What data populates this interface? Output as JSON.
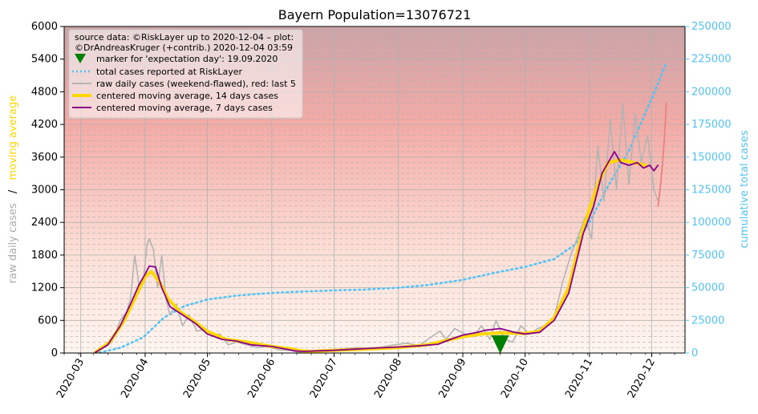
{
  "chart_data": {
    "type": "line",
    "title": "Bayern Population=13076721",
    "ylabel_left_parts": [
      "raw daily cases",
      "/",
      "moving average"
    ],
    "ylabel_right": "cumulative total cases",
    "x_ticks": [
      "2020-03",
      "2020-04",
      "2020-05",
      "2020-06",
      "2020-07",
      "2020-08",
      "2020-09",
      "2020-10",
      "2020-11",
      "2020-12"
    ],
    "x_tick_dates": [
      "2020-03-01",
      "2020-04-01",
      "2020-05-01",
      "2020-06-01",
      "2020-07-01",
      "2020-08-01",
      "2020-09-01",
      "2020-10-01",
      "2020-11-01",
      "2020-12-01"
    ],
    "xlim": [
      "2020-02-22",
      "2020-12-17"
    ],
    "ylim_left": [
      0,
      6000
    ],
    "yticks_left": [
      0,
      600,
      1200,
      1800,
      2400,
      3000,
      3600,
      4200,
      4800,
      5400,
      6000
    ],
    "ylim_right": [
      0,
      250000
    ],
    "yticks_right": [
      0,
      25000,
      50000,
      75000,
      100000,
      125000,
      150000,
      175000,
      200000,
      225000,
      250000
    ],
    "grid": true,
    "legend_position": "top-left",
    "colors": {
      "raw": "#b4b4b4",
      "raw_last5": "#f08080",
      "ma14": "#ffd700",
      "ma7": "#8b008b",
      "total": "#4fc3f7",
      "marker": "#008000",
      "label_raw": "#aaaaaa",
      "label_ma": "#ffd700",
      "right_axis": "#4fc3f7"
    },
    "legend": {
      "source_line1": "source data: ©RiskLayer up to 2020-12-04 – plot:",
      "source_line2": "©DrAndreasKruger (+contrib.) 2020-12-04 03:59",
      "items": [
        {
          "key": "marker",
          "label": "marker for 'expectation day': 19.09.2020"
        },
        {
          "key": "total",
          "label": "total cases reported at RiskLayer"
        },
        {
          "key": "raw",
          "label": "raw daily cases (weekend-flawed), red: last 5"
        },
        {
          "key": "ma14",
          "label": "centered moving average, 14 days cases"
        },
        {
          "key": "ma7",
          "label": "centered moving average, 7 days cases"
        }
      ]
    },
    "expectation_marker": {
      "date": "2020-09-19",
      "y": 150
    },
    "series": [
      {
        "name": "total cases reported at RiskLayer",
        "axis": "right",
        "points": [
          [
            "2020-03-10",
            300
          ],
          [
            "2020-03-20",
            4000
          ],
          [
            "2020-03-31",
            12000
          ],
          [
            "2020-04-10",
            27000
          ],
          [
            "2020-04-20",
            36000
          ],
          [
            "2020-05-01",
            41000
          ],
          [
            "2020-05-15",
            44000
          ],
          [
            "2020-06-01",
            46000
          ],
          [
            "2020-06-15",
            47000
          ],
          [
            "2020-07-01",
            48000
          ],
          [
            "2020-07-15",
            48500
          ],
          [
            "2020-08-01",
            50000
          ],
          [
            "2020-08-15",
            52000
          ],
          [
            "2020-09-01",
            56000
          ],
          [
            "2020-09-15",
            61000
          ],
          [
            "2020-10-01",
            66000
          ],
          [
            "2020-10-15",
            72000
          ],
          [
            "2020-10-25",
            83000
          ],
          [
            "2020-11-01",
            100000
          ],
          [
            "2020-11-10",
            128000
          ],
          [
            "2020-11-20",
            155000
          ],
          [
            "2020-12-01",
            195000
          ],
          [
            "2020-12-08",
            222000
          ]
        ]
      },
      {
        "name": "raw daily cases (weekend-flawed), red: last 5",
        "axis": "left",
        "points": [
          [
            "2020-03-08",
            20
          ],
          [
            "2020-03-12",
            100
          ],
          [
            "2020-03-16",
            200
          ],
          [
            "2020-03-20",
            600
          ],
          [
            "2020-03-23",
            750
          ],
          [
            "2020-03-25",
            1000
          ],
          [
            "2020-03-27",
            1800
          ],
          [
            "2020-03-29",
            1250
          ],
          [
            "2020-03-31",
            1300
          ],
          [
            "2020-04-02",
            2000
          ],
          [
            "2020-04-03",
            2100
          ],
          [
            "2020-04-05",
            1900
          ],
          [
            "2020-04-07",
            1200
          ],
          [
            "2020-04-09",
            1800
          ],
          [
            "2020-04-11",
            1000
          ],
          [
            "2020-04-13",
            700
          ],
          [
            "2020-04-16",
            900
          ],
          [
            "2020-04-19",
            500
          ],
          [
            "2020-04-22",
            700
          ],
          [
            "2020-04-26",
            400
          ],
          [
            "2020-04-30",
            450
          ],
          [
            "2020-05-03",
            300
          ],
          [
            "2020-05-07",
            350
          ],
          [
            "2020-05-11",
            150
          ],
          [
            "2020-05-15",
            200
          ],
          [
            "2020-05-20",
            150
          ],
          [
            "2020-05-25",
            100
          ],
          [
            "2020-05-30",
            120
          ],
          [
            "2020-06-04",
            60
          ],
          [
            "2020-06-10",
            50
          ],
          [
            "2020-06-14",
            10
          ],
          [
            "2020-06-18",
            40
          ],
          [
            "2020-06-24",
            50
          ],
          [
            "2020-06-30",
            60
          ],
          [
            "2020-07-06",
            80
          ],
          [
            "2020-07-12",
            100
          ],
          [
            "2020-07-18",
            90
          ],
          [
            "2020-07-24",
            110
          ],
          [
            "2020-07-30",
            150
          ],
          [
            "2020-08-05",
            180
          ],
          [
            "2020-08-11",
            140
          ],
          [
            "2020-08-17",
            300
          ],
          [
            "2020-08-21",
            400
          ],
          [
            "2020-08-24",
            250
          ],
          [
            "2020-08-28",
            450
          ],
          [
            "2020-09-02",
            350
          ],
          [
            "2020-09-06",
            300
          ],
          [
            "2020-09-10",
            500
          ],
          [
            "2020-09-14",
            250
          ],
          [
            "2020-09-17",
            600
          ],
          [
            "2020-09-21",
            250
          ],
          [
            "2020-09-25",
            200
          ],
          [
            "2020-09-29",
            500
          ],
          [
            "2020-10-03",
            350
          ],
          [
            "2020-10-07",
            450
          ],
          [
            "2020-10-11",
            500
          ],
          [
            "2020-10-15",
            650
          ],
          [
            "2020-10-19",
            1300
          ],
          [
            "2020-10-23",
            1800
          ],
          [
            "2020-10-27",
            2200
          ],
          [
            "2020-10-30",
            2500
          ],
          [
            "2020-11-02",
            2100
          ],
          [
            "2020-11-05",
            3800
          ],
          [
            "2020-11-08",
            2800
          ],
          [
            "2020-11-11",
            4300
          ],
          [
            "2020-11-14",
            3000
          ],
          [
            "2020-11-17",
            4600
          ],
          [
            "2020-11-20",
            3100
          ],
          [
            "2020-11-23",
            4400
          ],
          [
            "2020-11-26",
            3500
          ],
          [
            "2020-11-29",
            4000
          ],
          [
            "2020-12-02",
            3000
          ],
          [
            "2020-12-04",
            2800
          ]
        ]
      },
      {
        "name": "raw daily cases, last 5",
        "axis": "left",
        "points": [
          [
            "2020-12-04",
            2700
          ],
          [
            "2020-12-05",
            3000
          ],
          [
            "2020-12-06",
            3400
          ],
          [
            "2020-12-07",
            3900
          ],
          [
            "2020-12-08",
            4600
          ]
        ]
      },
      {
        "name": "centered moving average, 14 days cases",
        "axis": "left",
        "points": [
          [
            "2020-03-08",
            10
          ],
          [
            "2020-03-15",
            200
          ],
          [
            "2020-03-22",
            600
          ],
          [
            "2020-03-27",
            1000
          ],
          [
            "2020-04-01",
            1400
          ],
          [
            "2020-04-04",
            1500
          ],
          [
            "2020-04-08",
            1300
          ],
          [
            "2020-04-12",
            1000
          ],
          [
            "2020-04-18",
            750
          ],
          [
            "2020-04-24",
            600
          ],
          [
            "2020-05-01",
            400
          ],
          [
            "2020-05-10",
            250
          ],
          [
            "2020-05-20",
            200
          ],
          [
            "2020-06-01",
            120
          ],
          [
            "2020-06-10",
            80
          ],
          [
            "2020-06-15",
            40
          ],
          [
            "2020-06-20",
            30
          ],
          [
            "2020-07-01",
            50
          ],
          [
            "2020-07-15",
            70
          ],
          [
            "2020-08-01",
            100
          ],
          [
            "2020-08-15",
            150
          ],
          [
            "2020-09-01",
            300
          ],
          [
            "2020-09-10",
            350
          ],
          [
            "2020-09-19",
            370
          ],
          [
            "2020-10-01",
            360
          ],
          [
            "2020-10-08",
            400
          ],
          [
            "2020-10-15",
            650
          ],
          [
            "2020-10-22",
            1200
          ],
          [
            "2020-10-29",
            2300
          ],
          [
            "2020-11-05",
            3100
          ],
          [
            "2020-11-10",
            3500
          ],
          [
            "2020-11-16",
            3550
          ],
          [
            "2020-11-22",
            3500
          ],
          [
            "2020-11-28",
            3450
          ]
        ]
      },
      {
        "name": "centered moving average, 7 days cases",
        "axis": "left",
        "points": [
          [
            "2020-03-08",
            10
          ],
          [
            "2020-03-14",
            150
          ],
          [
            "2020-03-20",
            500
          ],
          [
            "2020-03-25",
            900
          ],
          [
            "2020-03-29",
            1250
          ],
          [
            "2020-04-01",
            1450
          ],
          [
            "2020-04-03",
            1600
          ],
          [
            "2020-04-06",
            1580
          ],
          [
            "2020-04-09",
            1200
          ],
          [
            "2020-04-13",
            850
          ],
          [
            "2020-04-19",
            700
          ],
          [
            "2020-04-25",
            550
          ],
          [
            "2020-05-01",
            350
          ],
          [
            "2020-05-08",
            250
          ],
          [
            "2020-05-15",
            220
          ],
          [
            "2020-05-22",
            150
          ],
          [
            "2020-06-01",
            120
          ],
          [
            "2020-06-08",
            70
          ],
          [
            "2020-06-12",
            40
          ],
          [
            "2020-06-16",
            30
          ],
          [
            "2020-06-23",
            40
          ],
          [
            "2020-07-01",
            50
          ],
          [
            "2020-07-10",
            70
          ],
          [
            "2020-07-20",
            90
          ],
          [
            "2020-08-01",
            110
          ],
          [
            "2020-08-10",
            130
          ],
          [
            "2020-08-20",
            160
          ],
          [
            "2020-08-26",
            250
          ],
          [
            "2020-09-01",
            330
          ],
          [
            "2020-09-08",
            380
          ],
          [
            "2020-09-12",
            420
          ],
          [
            "2020-09-19",
            450
          ],
          [
            "2020-09-26",
            380
          ],
          [
            "2020-10-01",
            350
          ],
          [
            "2020-10-08",
            380
          ],
          [
            "2020-10-15",
            600
          ],
          [
            "2020-10-22",
            1100
          ],
          [
            "2020-10-29",
            2200
          ],
          [
            "2020-11-03",
            2700
          ],
          [
            "2020-11-07",
            3300
          ],
          [
            "2020-11-10",
            3500
          ],
          [
            "2020-11-13",
            3700
          ],
          [
            "2020-11-16",
            3500
          ],
          [
            "2020-11-20",
            3450
          ],
          [
            "2020-11-24",
            3500
          ],
          [
            "2020-11-27",
            3400
          ],
          [
            "2020-11-30",
            3450
          ],
          [
            "2020-12-02",
            3350
          ],
          [
            "2020-12-04",
            3450
          ]
        ]
      }
    ]
  }
}
